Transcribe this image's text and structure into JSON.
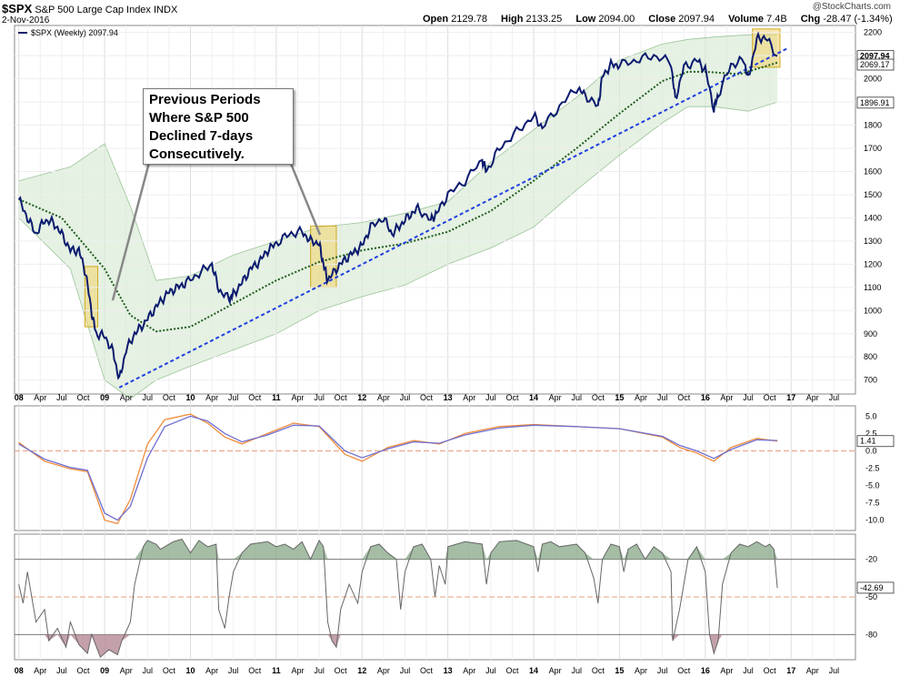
{
  "header": {
    "symbol": "$SPX",
    "name": "S&P 500 Large Cap Index",
    "exchange": "INDX",
    "date": "2-Nov-2016",
    "watermark": "@StockCharts.com",
    "open_label": "Open",
    "open": "2129.78",
    "high_label": "High",
    "high": "2133.25",
    "low_label": "Low",
    "low": "2094.00",
    "close_label": "Close",
    "close": "2097.94",
    "volume_label": "Volume",
    "volume": "7.4B",
    "chg_label": "Chg",
    "chg": "-28.47 (-1.34%)"
  },
  "annotation": {
    "lines": [
      "Previous Periods",
      "Where S&P 500",
      "Declined 7-days",
      "Consecutively."
    ]
  },
  "chart_data": [
    {
      "type": "line",
      "title": "$SPX S&P 500 Large Cap Index INDX (Weekly)",
      "legend": [
        "$SPX (Weekly) 2097.94"
      ],
      "x_labels": [
        "08",
        "Apr",
        "Jul",
        "Oct",
        "09",
        "Apr",
        "Jul",
        "Oct",
        "10",
        "Apr",
        "Jul",
        "Oct",
        "11",
        "Apr",
        "Jul",
        "Oct",
        "12",
        "Apr",
        "Jul",
        "Oct",
        "13",
        "Apr",
        "Jul",
        "Oct",
        "14",
        "Apr",
        "Jul",
        "Oct",
        "15",
        "Apr",
        "Jul",
        "Oct",
        "16",
        "Apr",
        "Jul",
        "Oct",
        "17",
        "Apr",
        "Jul"
      ],
      "ylim": [
        640,
        2230
      ],
      "y_ticks": [
        700,
        800,
        900,
        1000,
        1100,
        1200,
        1300,
        1400,
        1500,
        1600,
        1700,
        1800,
        1900,
        2000,
        2100,
        2200
      ],
      "series": [
        {
          "name": "$SPX (Weekly)",
          "color": "#0a1a6e",
          "x": [
            2008.0,
            2008.1,
            2008.2,
            2008.3,
            2008.4,
            2008.5,
            2008.6,
            2008.7,
            2008.78,
            2008.85,
            2008.9,
            2009.0,
            2009.1,
            2009.17,
            2009.25,
            2009.35,
            2009.45,
            2009.55,
            2009.65,
            2009.75,
            2009.85,
            2009.95,
            2010.1,
            2010.25,
            2010.33,
            2010.45,
            2010.5,
            2010.6,
            2010.7,
            2010.8,
            2010.9,
            2011.0,
            2011.15,
            2011.3,
            2011.4,
            2011.5,
            2011.55,
            2011.6,
            2011.7,
            2011.8,
            2011.9,
            2012.0,
            2012.1,
            2012.25,
            2012.35,
            2012.45,
            2012.55,
            2012.65,
            2012.8,
            2012.87,
            2013.0,
            2013.2,
            2013.4,
            2013.45,
            2013.6,
            2013.8,
            2014.0,
            2014.1,
            2014.3,
            2014.5,
            2014.6,
            2014.75,
            2014.8,
            2014.9,
            2015.0,
            2015.2,
            2015.4,
            2015.6,
            2015.65,
            2015.75,
            2015.9,
            2016.0,
            2016.1,
            2016.15,
            2016.3,
            2016.45,
            2016.5,
            2016.6,
            2016.7,
            2016.84
          ],
          "y": [
            1480,
            1400,
            1330,
            1390,
            1380,
            1330,
            1260,
            1260,
            1160,
            990,
            900,
            890,
            820,
            700,
            830,
            900,
            940,
            990,
            1040,
            1080,
            1100,
            1120,
            1160,
            1200,
            1090,
            1050,
            1070,
            1120,
            1180,
            1210,
            1260,
            1290,
            1330,
            1340,
            1300,
            1290,
            1200,
            1130,
            1180,
            1220,
            1250,
            1280,
            1360,
            1400,
            1330,
            1370,
            1410,
            1440,
            1390,
            1420,
            1500,
            1560,
            1650,
            1600,
            1700,
            1770,
            1840,
            1790,
            1880,
            1960,
            1930,
            1880,
            2010,
            2060,
            2060,
            2080,
            2100,
            2070,
            1910,
            2050,
            2080,
            2040,
            1870,
            1930,
            2060,
            2080,
            2000,
            2170,
            2180,
            2098
          ]
        },
        {
          "name": "Moving average (dotted)",
          "color": "#1e5c1e",
          "x": [
            2008.0,
            2008.5,
            2009.0,
            2009.3,
            2009.6,
            2010.0,
            2010.5,
            2011.0,
            2011.5,
            2012.0,
            2012.5,
            2013.0,
            2013.5,
            2014.0,
            2014.5,
            2015.0,
            2015.5,
            2015.8,
            2016.0,
            2016.4,
            2016.84
          ],
          "y": [
            1480,
            1400,
            1180,
            980,
            910,
            930,
            1030,
            1130,
            1210,
            1260,
            1290,
            1340,
            1430,
            1560,
            1700,
            1850,
            1990,
            2030,
            2030,
            2020,
            2070
          ]
        },
        {
          "name": "Upper band",
          "x": [
            2008.0,
            2008.6,
            2009.0,
            2009.3,
            2009.6,
            2010.0,
            2010.5,
            2011.0,
            2011.5,
            2012.0,
            2012.5,
            2013.0,
            2013.5,
            2014.0,
            2014.5,
            2015.0,
            2015.5,
            2015.8,
            2016.1,
            2016.5,
            2016.84
          ],
          "y": [
            1560,
            1620,
            1720,
            1450,
            1130,
            1150,
            1240,
            1300,
            1360,
            1380,
            1420,
            1470,
            1640,
            1780,
            1920,
            2080,
            2150,
            2170,
            2180,
            2190,
            2190
          ]
        },
        {
          "name": "Lower band",
          "x": [
            2008.0,
            2008.6,
            2009.0,
            2009.3,
            2009.6,
            2010.0,
            2010.5,
            2011.0,
            2011.5,
            2012.0,
            2012.5,
            2013.0,
            2013.5,
            2014.0,
            2014.5,
            2015.0,
            2015.5,
            2015.8,
            2016.1,
            2016.5,
            2016.84
          ],
          "y": [
            1400,
            1180,
            700,
            620,
            700,
            760,
            830,
            900,
            1000,
            1060,
            1110,
            1200,
            1270,
            1360,
            1520,
            1670,
            1810,
            1880,
            1880,
            1860,
            1900
          ]
        },
        {
          "name": "Trendline (dashed)",
          "color": "#1f3fe0",
          "x": [
            2009.17,
            2016.95
          ],
          "y": [
            668,
            2130
          ]
        }
      ],
      "value_labels": [
        "2097.94",
        "2069.17",
        "1896.91"
      ],
      "highlight_regions": [
        {
          "x": [
            2008.77,
            2008.92
          ],
          "y": [
            930,
            1190
          ]
        },
        {
          "x": [
            2011.4,
            2011.7
          ],
          "y": [
            1100,
            1365
          ]
        },
        {
          "x": [
            2016.55,
            2016.87
          ],
          "y": [
            2050,
            2215
          ]
        }
      ]
    },
    {
      "type": "line",
      "title": "MACD panel",
      "ylim": [
        -11.5,
        6.5
      ],
      "y_ticks": [
        5.0,
        2.5,
        0.0,
        -2.5,
        -5.0,
        -7.5,
        -10.0
      ],
      "value_labels": [
        "1.41"
      ],
      "series": [
        {
          "name": "MACD",
          "color": "#f08c3c",
          "x": [
            2008.0,
            2008.3,
            2008.6,
            2008.8,
            2009.0,
            2009.15,
            2009.3,
            2009.5,
            2009.7,
            2010.0,
            2010.2,
            2010.4,
            2010.6,
            2010.9,
            2011.2,
            2011.5,
            2011.8,
            2012.0,
            2012.3,
            2012.6,
            2012.9,
            2013.2,
            2013.6,
            2014.0,
            2014.5,
            2015.0,
            2015.5,
            2015.7,
            2015.9,
            2016.1,
            2016.3,
            2016.6,
            2016.84
          ],
          "y": [
            1.2,
            -1.5,
            -2.6,
            -3.0,
            -10.0,
            -10.5,
            -7.0,
            1.0,
            4.5,
            5.3,
            4.0,
            2.0,
            1.0,
            2.5,
            4.0,
            3.5,
            -0.5,
            -1.5,
            0.5,
            1.5,
            1.0,
            2.5,
            3.5,
            3.8,
            3.5,
            3.2,
            2.0,
            0.5,
            -0.3,
            -1.5,
            0.5,
            1.8,
            1.4
          ]
        },
        {
          "name": "Signal",
          "color": "#6f6fd0",
          "x": [
            2008.0,
            2008.3,
            2008.6,
            2008.8,
            2009.0,
            2009.15,
            2009.3,
            2009.5,
            2009.7,
            2010.0,
            2010.2,
            2010.4,
            2010.6,
            2010.9,
            2011.2,
            2011.5,
            2011.8,
            2012.0,
            2012.3,
            2012.6,
            2012.9,
            2013.2,
            2013.6,
            2014.0,
            2014.5,
            2015.0,
            2015.5,
            2015.7,
            2015.9,
            2016.1,
            2016.3,
            2016.6,
            2016.84
          ],
          "y": [
            1.0,
            -1.2,
            -2.4,
            -2.8,
            -9.0,
            -10.0,
            -8.0,
            -1.0,
            3.5,
            5.0,
            4.3,
            2.5,
            1.3,
            2.3,
            3.7,
            3.6,
            0.0,
            -1.0,
            0.3,
            1.3,
            1.1,
            2.3,
            3.3,
            3.7,
            3.5,
            3.2,
            2.1,
            0.8,
            0.0,
            -1.1,
            0.2,
            1.6,
            1.5
          ]
        }
      ]
    },
    {
      "type": "area",
      "title": "Williams %R panel",
      "ylim": [
        -100,
        0
      ],
      "y_ticks": [
        -20,
        -50,
        -80
      ],
      "value_labels": [
        "-42.69"
      ],
      "series": [
        {
          "name": "%R",
          "color": "#666666",
          "x": [
            2008.0,
            2008.05,
            2008.1,
            2008.2,
            2008.3,
            2008.35,
            2008.45,
            2008.55,
            2008.6,
            2008.7,
            2008.8,
            2008.85,
            2008.95,
            2009.05,
            2009.15,
            2009.2,
            2009.3,
            2009.35,
            2009.45,
            2009.5,
            2009.6,
            2009.65,
            2009.8,
            2009.9,
            2010.0,
            2010.1,
            2010.2,
            2010.3,
            2010.33,
            2010.4,
            2010.45,
            2010.5,
            2010.6,
            2010.7,
            2010.9,
            2011.0,
            2011.1,
            2011.2,
            2011.3,
            2011.4,
            2011.5,
            2011.55,
            2011.6,
            2011.65,
            2011.7,
            2011.75,
            2011.85,
            2011.95,
            2012.0,
            2012.1,
            2012.2,
            2012.3,
            2012.4,
            2012.45,
            2012.5,
            2012.6,
            2012.7,
            2012.8,
            2012.85,
            2012.9,
            2012.97,
            2013.0,
            2013.2,
            2013.4,
            2013.45,
            2013.5,
            2013.6,
            2013.8,
            2014.0,
            2014.05,
            2014.1,
            2014.2,
            2014.3,
            2014.5,
            2014.6,
            2014.7,
            2014.75,
            2014.8,
            2014.9,
            2015.0,
            2015.05,
            2015.1,
            2015.2,
            2015.3,
            2015.4,
            2015.5,
            2015.6,
            2015.62,
            2015.7,
            2015.8,
            2015.9,
            2016.0,
            2016.05,
            2016.1,
            2016.15,
            2016.2,
            2016.3,
            2016.4,
            2016.5,
            2016.6,
            2016.7,
            2016.75,
            2016.8,
            2016.84
          ],
          "y": [
            -40,
            -55,
            -30,
            -70,
            -60,
            -85,
            -75,
            -90,
            -70,
            -88,
            -95,
            -80,
            -98,
            -92,
            -96,
            -85,
            -70,
            -40,
            -10,
            -5,
            -8,
            -12,
            -6,
            -4,
            -15,
            -5,
            -10,
            -8,
            -60,
            -75,
            -50,
            -30,
            -15,
            -8,
            -6,
            -10,
            -8,
            -12,
            -6,
            -20,
            -5,
            -10,
            -70,
            -85,
            -90,
            -60,
            -40,
            -55,
            -30,
            -10,
            -8,
            -15,
            -20,
            -60,
            -30,
            -10,
            -8,
            -20,
            -50,
            -25,
            -40,
            -10,
            -6,
            -8,
            -40,
            -15,
            -6,
            -5,
            -10,
            -30,
            -8,
            -6,
            -10,
            -8,
            -15,
            -35,
            -55,
            -20,
            -8,
            -10,
            -30,
            -12,
            -8,
            -20,
            -10,
            -15,
            -30,
            -85,
            -60,
            -20,
            -10,
            -30,
            -80,
            -95,
            -85,
            -40,
            -15,
            -8,
            -10,
            -6,
            -10,
            -8,
            -12,
            -43
          ]
        }
      ]
    }
  ]
}
